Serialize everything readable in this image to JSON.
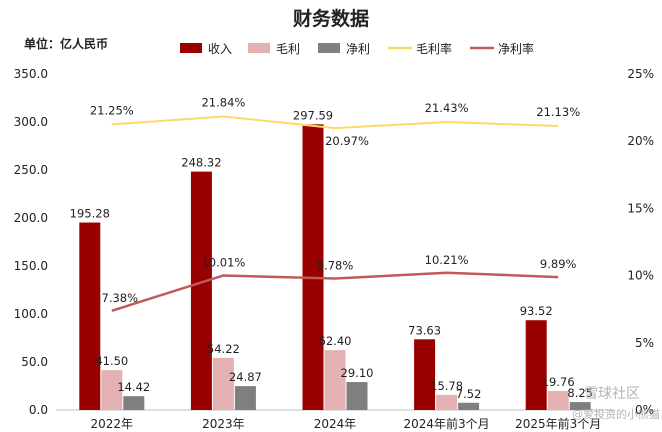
{
  "chart_data": {
    "type": "bar",
    "title": "财务数据",
    "unit_label": "单位：亿人民币",
    "categories": [
      "2022年",
      "2023年",
      "2024年",
      "2024年前3个月",
      "2025年前3个月"
    ],
    "left_axis": {
      "min": 0,
      "max": 350,
      "step": 50,
      "ticks": [
        "0.0",
        "50.0",
        "100.0",
        "150.0",
        "200.0",
        "250.0",
        "300.0",
        "350.0"
      ]
    },
    "right_axis": {
      "min": 0,
      "max": 25,
      "step": 5,
      "ticks": [
        "0%",
        "5%",
        "10%",
        "15%",
        "20%",
        "25%"
      ]
    },
    "bar_series": [
      {
        "name": "收入",
        "color": "#990000",
        "values": [
          195.28,
          248.32,
          297.59,
          73.63,
          93.52
        ],
        "labels": [
          "195.28",
          "248.32",
          "297.59",
          "73.63",
          "93.52"
        ]
      },
      {
        "name": "毛利",
        "color": "#e3b1b1",
        "values": [
          41.5,
          54.22,
          62.4,
          15.78,
          19.76
        ],
        "labels": [
          "41.50",
          "54.22",
          "62.40",
          "15.78",
          "19.76"
        ]
      },
      {
        "name": "净利",
        "color": "#7f7f7f",
        "values": [
          14.42,
          24.87,
          29.1,
          7.52,
          8.25
        ],
        "labels": [
          "14.42",
          "24.87",
          "29.10",
          "7.52",
          "8.25"
        ]
      }
    ],
    "line_series": [
      {
        "name": "毛利率",
        "color": "#ffd966",
        "label_color": "#f2b705",
        "values": [
          21.25,
          21.84,
          20.97,
          21.43,
          21.13
        ],
        "labels": [
          "21.25%",
          "21.84%",
          "20.97%",
          "21.43%",
          "21.13%"
        ]
      },
      {
        "name": "净利率",
        "color": "#c05a5a",
        "label_color": "#c00000",
        "values": [
          7.38,
          10.01,
          9.78,
          10.21,
          9.89
        ],
        "labels": [
          "7.38%",
          "10.01%",
          "9.78%",
          "10.21%",
          "9.89%"
        ]
      }
    ],
    "legend_position": "top",
    "grid": false
  },
  "watermark": {
    "line1": "雪球社区",
    "line2": "@爱投资的小熊猫"
  }
}
